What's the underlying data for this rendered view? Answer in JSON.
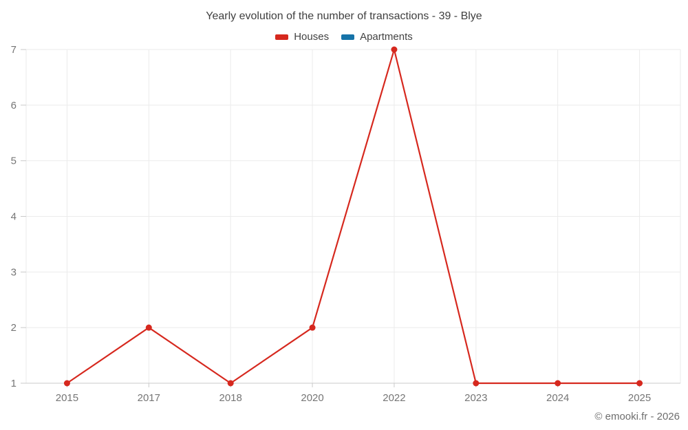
{
  "chart_data": {
    "type": "line",
    "title": "Yearly evolution of the number of transactions - 39 - Blye",
    "categories": [
      "2015",
      "2017",
      "2018",
      "2020",
      "2022",
      "2023",
      "2024",
      "2025"
    ],
    "series": [
      {
        "name": "Houses",
        "color": "#d6281e",
        "values": [
          1,
          2,
          1,
          2,
          7,
          1,
          1,
          1
        ]
      },
      {
        "name": "Apartments",
        "color": "#1673a8",
        "values": []
      }
    ],
    "xlabel": "",
    "ylabel": "",
    "ylim": [
      1,
      7
    ],
    "yticks": [
      1,
      2,
      3,
      4,
      5,
      6,
      7
    ],
    "grid": true,
    "legend_position": "top"
  },
  "footer": {
    "copyright": "© emooki.fr - 2026"
  },
  "colors": {
    "houses": "#d6281e",
    "apartments": "#1673a8",
    "grid": "#ebebeb",
    "axis": "#c9c9c9",
    "tick_label": "#757575",
    "title_text": "#3f3f3f"
  }
}
